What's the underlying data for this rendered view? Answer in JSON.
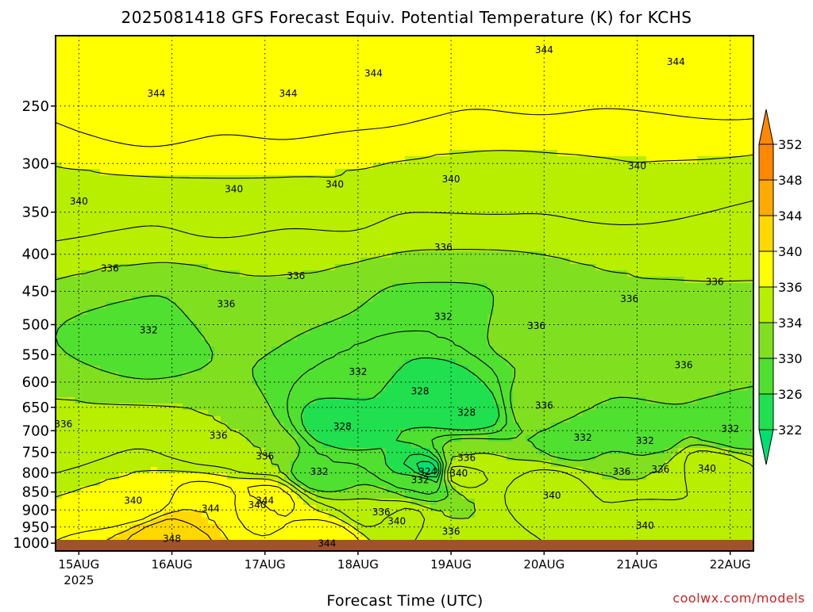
{
  "chart_data": {
    "type": "heatmap",
    "title": "2025081418 GFS Forecast Equiv. Potential Temperature (K) for KCHS",
    "xlabel": "Forecast Time (UTC)",
    "ylabel": "",
    "watermark": "coolwx.com/models",
    "x_ticks": [
      {
        "label": "15AUG",
        "sublabel": "2025",
        "value": "2025-08-15T00"
      },
      {
        "label": "16AUG",
        "sublabel": "",
        "value": "2025-08-16T00"
      },
      {
        "label": "17AUG",
        "sublabel": "",
        "value": "2025-08-17T00"
      },
      {
        "label": "18AUG",
        "sublabel": "",
        "value": "2025-08-18T00"
      },
      {
        "label": "19AUG",
        "sublabel": "",
        "value": "2025-08-19T00"
      },
      {
        "label": "20AUG",
        "sublabel": "",
        "value": "2025-08-20T00"
      },
      {
        "label": "21AUG",
        "sublabel": "",
        "value": "2025-08-21T00"
      },
      {
        "label": "22AUG",
        "sublabel": "",
        "value": "2025-08-22T00"
      }
    ],
    "xlim": [
      "2025-08-14T18",
      "2025-08-22T06"
    ],
    "y_ticks": [
      "250",
      "300",
      "350",
      "400",
      "450",
      "500",
      "550",
      "600",
      "650",
      "700",
      "750",
      "800",
      "850",
      "900",
      "950",
      "1000"
    ],
    "y_scale": "log",
    "y_inverted": true,
    "ylim": [
      1025,
      200
    ],
    "grid": true,
    "colorbar": {
      "placement": "right",
      "levels": [
        "322",
        "326",
        "330",
        "334",
        "336",
        "340",
        "344",
        "348",
        "352"
      ],
      "colors": [
        "#00e070",
        "#20e050",
        "#50e030",
        "#80e020",
        "#b8ee00",
        "#ffff00",
        "#ffd800",
        "#ffaa00",
        "#ff8800"
      ],
      "extend": "both"
    },
    "contour_labels": [
      {
        "text": "344",
        "time": "2025-08-15T20",
        "p": 240
      },
      {
        "text": "344",
        "time": "2025-08-17T06",
        "p": 240
      },
      {
        "text": "344",
        "time": "2025-08-18T04",
        "p": 225
      },
      {
        "text": "344",
        "time": "2025-08-20T00",
        "p": 209
      },
      {
        "text": "344",
        "time": "2025-08-21T10",
        "p": 217
      },
      {
        "text": "340",
        "time": "2025-08-15T00",
        "p": 338
      },
      {
        "text": "340",
        "time": "2025-08-16T16",
        "p": 325
      },
      {
        "text": "340",
        "time": "2025-08-17T18",
        "p": 320
      },
      {
        "text": "340",
        "time": "2025-08-19T00",
        "p": 315
      },
      {
        "text": "340",
        "time": "2025-08-21T00",
        "p": 302
      },
      {
        "text": "336",
        "time": "2025-08-15T08",
        "p": 418
      },
      {
        "text": "336",
        "time": "2025-08-16T14",
        "p": 468
      },
      {
        "text": "336",
        "time": "2025-08-17T08",
        "p": 428
      },
      {
        "text": "336",
        "time": "2025-08-18T22",
        "p": 391
      },
      {
        "text": "336",
        "time": "2025-08-20T22",
        "p": 460
      },
      {
        "text": "336",
        "time": "2025-08-21T12",
        "p": 568
      },
      {
        "text": "336",
        "time": "2025-08-21T20",
        "p": 436
      },
      {
        "text": "336",
        "time": "2025-08-19T22",
        "p": 501
      },
      {
        "text": "336",
        "time": "2025-08-20T00",
        "p": 645
      },
      {
        "text": "336",
        "time": "2025-08-14T20",
        "p": 685
      },
      {
        "text": "336",
        "time": "2025-08-16T12",
        "p": 710
      },
      {
        "text": "336",
        "time": "2025-08-17T00",
        "p": 758
      },
      {
        "text": "336",
        "time": "2025-08-19T04",
        "p": 762
      },
      {
        "text": "336",
        "time": "2025-08-18T06",
        "p": 905
      },
      {
        "text": "336",
        "time": "2025-08-19T00",
        "p": 962
      },
      {
        "text": "336",
        "time": "2025-08-20T20",
        "p": 796
      },
      {
        "text": "336",
        "time": "2025-08-21T06",
        "p": 790
      },
      {
        "text": "332",
        "time": "2025-08-15T18",
        "p": 508
      },
      {
        "text": "332",
        "time": "2025-08-18T00",
        "p": 580
      },
      {
        "text": "332",
        "time": "2025-08-18T22",
        "p": 487
      },
      {
        "text": "332",
        "time": "2025-08-17T14",
        "p": 796
      },
      {
        "text": "332",
        "time": "2025-08-18T16",
        "p": 817
      },
      {
        "text": "332",
        "time": "2025-08-20T10",
        "p": 715
      },
      {
        "text": "332",
        "time": "2025-08-21T02",
        "p": 722
      },
      {
        "text": "332",
        "time": "2025-08-22T00",
        "p": 695
      },
      {
        "text": "328",
        "time": "2025-08-18T16",
        "p": 617
      },
      {
        "text": "328",
        "time": "2025-08-17T20",
        "p": 690
      },
      {
        "text": "328",
        "time": "2025-08-19T04",
        "p": 660
      },
      {
        "text": "324",
        "time": "2025-08-18T18",
        "p": 796
      },
      {
        "text": "340",
        "time": "2025-08-15T14",
        "p": 873
      },
      {
        "text": "344",
        "time": "2025-08-16T10",
        "p": 895
      },
      {
        "text": "340",
        "time": "2025-08-16T22",
        "p": 885
      },
      {
        "text": "344",
        "time": "2025-08-17T00",
        "p": 873
      },
      {
        "text": "348",
        "time": "2025-08-16T00",
        "p": 985
      },
      {
        "text": "340",
        "time": "2025-08-18T10",
        "p": 932
      },
      {
        "text": "344",
        "time": "2025-08-17T16",
        "p": 1000
      },
      {
        "text": "340",
        "time": "2025-08-19T02",
        "p": 800
      },
      {
        "text": "340",
        "time": "2025-08-20T02",
        "p": 858
      },
      {
        "text": "340",
        "time": "2025-08-21T02",
        "p": 945
      },
      {
        "text": "340",
        "time": "2025-08-21T18",
        "p": 788
      }
    ]
  }
}
